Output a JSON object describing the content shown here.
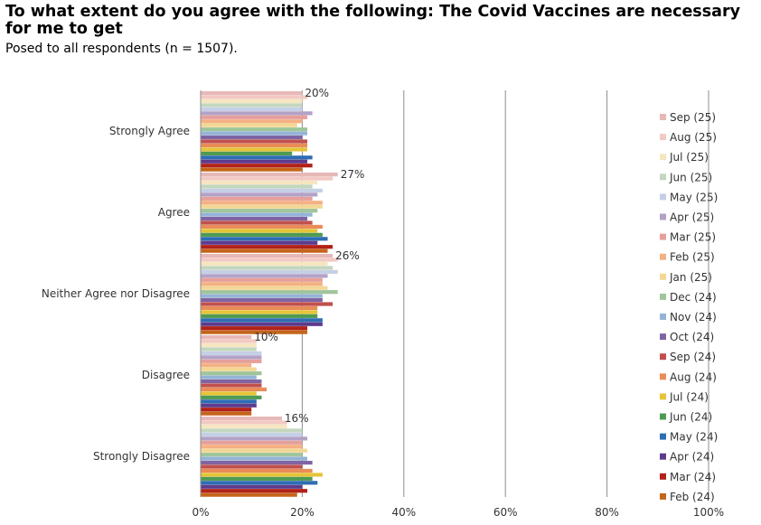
{
  "title": "To what extent do you agree with the following: The Covid Vaccines are necessary for me to get",
  "subtitle": "Posed to all respondents (n = 1507).",
  "chart_data": {
    "type": "bar",
    "orientation": "horizontal",
    "categories": [
      "Strongly Agree",
      "Agree",
      "Neither Agree nor Disagree",
      "Disagree",
      "Strongly Disagree"
    ],
    "x_ticks": [
      "0%",
      "20%",
      "40%",
      "60%",
      "80%",
      "100%"
    ],
    "xlim": [
      0,
      100
    ],
    "grid": true,
    "legend_position": "right",
    "series": [
      {
        "name": "Sep (25)",
        "color": "#e6b8b7",
        "values": [
          20,
          27,
          26,
          10,
          16
        ]
      },
      {
        "name": "Aug (25)",
        "color": "#f2c9c3",
        "values": [
          21,
          26,
          27,
          11,
          17
        ]
      },
      {
        "name": "Jul (25)",
        "color": "#f5e6c0",
        "values": [
          20,
          23,
          25,
          11,
          17
        ]
      },
      {
        "name": "Jun (25)",
        "color": "#c3d6be",
        "values": [
          20,
          22,
          26,
          11,
          20
        ]
      },
      {
        "name": "May (25)",
        "color": "#c5d0e6",
        "values": [
          20,
          24,
          27,
          12,
          20
        ]
      },
      {
        "name": "Apr (25)",
        "color": "#b3a2c7",
        "values": [
          22,
          23,
          25,
          12,
          21
        ]
      },
      {
        "name": "Mar (25)",
        "color": "#e6a09b",
        "values": [
          21,
          22,
          24,
          12,
          20
        ]
      },
      {
        "name": "Feb (25)",
        "color": "#f4b183",
        "values": [
          20,
          24,
          24,
          10,
          20
        ]
      },
      {
        "name": "Jan (25)",
        "color": "#f2d795",
        "values": [
          19,
          24,
          25,
          11,
          21
        ]
      },
      {
        "name": "Dec (24)",
        "color": "#9fc59b",
        "values": [
          21,
          23,
          27,
          12,
          20
        ]
      },
      {
        "name": "Nov (24)",
        "color": "#95b3d7",
        "values": [
          21,
          22,
          24,
          11,
          21
        ]
      },
      {
        "name": "Oct (24)",
        "color": "#8064a2",
        "values": [
          20,
          21,
          24,
          12,
          22
        ]
      },
      {
        "name": "Sep (24)",
        "color": "#c0504d",
        "values": [
          21,
          22,
          26,
          12,
          20
        ]
      },
      {
        "name": "Aug (24)",
        "color": "#e98c58",
        "values": [
          21,
          24,
          23,
          13,
          22
        ]
      },
      {
        "name": "Jul (24)",
        "color": "#e5c439",
        "values": [
          21,
          23,
          23,
          11,
          24
        ]
      },
      {
        "name": "Jun (24)",
        "color": "#4f9a52",
        "values": [
          18,
          24,
          23,
          12,
          22
        ]
      },
      {
        "name": "May (24)",
        "color": "#2e6db4",
        "values": [
          22,
          25,
          24,
          11,
          23
        ]
      },
      {
        "name": "Apr (24)",
        "color": "#5e3b8c",
        "values": [
          21,
          23,
          24,
          11,
          20
        ]
      },
      {
        "name": "Mar (24)",
        "color": "#b22218",
        "values": [
          22,
          26,
          21,
          10,
          21
        ]
      },
      {
        "name": "Feb (24)",
        "color": "#c5651a",
        "values": [
          20,
          25,
          21,
          10,
          19
        ]
      }
    ]
  }
}
